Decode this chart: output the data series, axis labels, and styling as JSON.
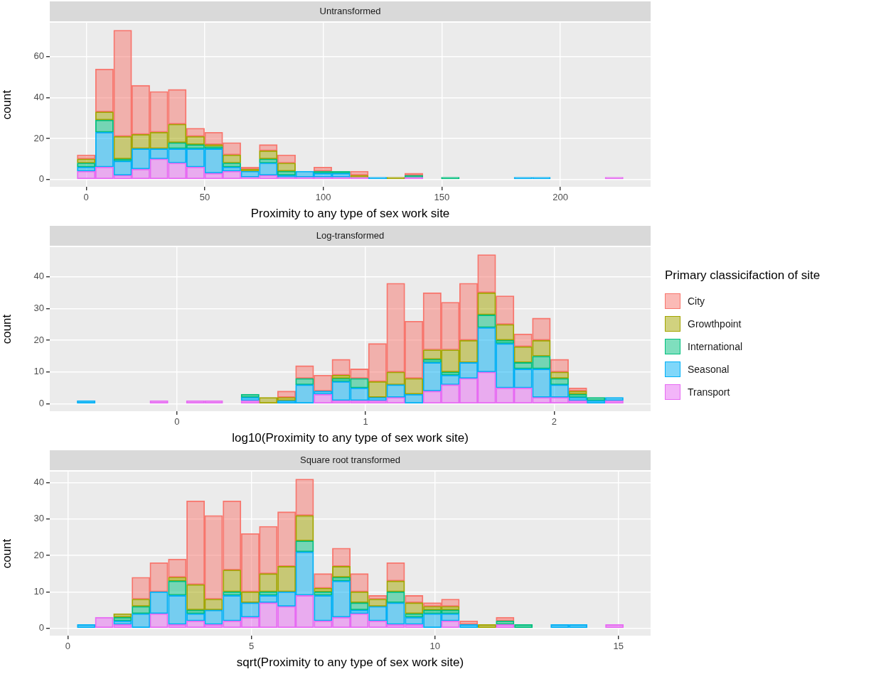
{
  "chart_data": [
    {
      "type": "bar",
      "title": "Untransformed",
      "xlabel": "Proximity to any type of sex work site",
      "ylabel": "count",
      "stacked": true,
      "grid": true,
      "legend": false,
      "x": [
        0,
        7.7,
        15.4,
        23,
        30.7,
        38.4,
        46.1,
        53.8,
        61.4,
        69.1,
        76.8,
        84.5,
        92.2,
        99.8,
        107.5,
        115.2,
        122.9,
        130.6,
        138.2,
        145.9,
        153.6,
        161.3,
        169,
        176.6,
        184.3,
        192,
        199.7,
        207.4,
        215,
        222.7
      ],
      "xlim": [
        -15.36,
        238.08
      ],
      "xticks": [
        0,
        50,
        100,
        150,
        200
      ],
      "ylim": [
        -3.65,
        76.65
      ],
      "yticks": [
        0,
        20,
        40,
        60
      ],
      "series": [
        {
          "color": "#e76bf3",
          "values": [
            4,
            6,
            2,
            5,
            10,
            8,
            6,
            3,
            4,
            1,
            2,
            1,
            1,
            1,
            1,
            1,
            null,
            null,
            1,
            null,
            null,
            null,
            null,
            null,
            null,
            null,
            null,
            null,
            null,
            1
          ]
        },
        {
          "color": "#00b0f6",
          "values": [
            2,
            17,
            7,
            10,
            5,
            7,
            9,
            12,
            2,
            3,
            6,
            1,
            3,
            2,
            2,
            null,
            1,
            null,
            null,
            null,
            null,
            null,
            null,
            null,
            1,
            1,
            null,
            null,
            null,
            null
          ]
        },
        {
          "color": "#00bf7d",
          "values": [
            2,
            6,
            1,
            null,
            null,
            3,
            2,
            1,
            2,
            null,
            2,
            2,
            null,
            1,
            1,
            null,
            null,
            null,
            1,
            null,
            1,
            null,
            null,
            null,
            null,
            null,
            null,
            null,
            null,
            null
          ]
        },
        {
          "color": "#a3a500",
          "values": [
            2,
            4,
            11,
            7,
            8,
            9,
            4,
            1,
            4,
            1,
            4,
            4,
            null,
            null,
            null,
            1,
            null,
            1,
            null,
            null,
            null,
            null,
            null,
            null,
            null,
            null,
            null,
            null,
            null,
            null
          ]
        },
        {
          "color": "#f8766d",
          "values": [
            2,
            21,
            52,
            24,
            20,
            17,
            4,
            6,
            6,
            1,
            3,
            4,
            null,
            2,
            null,
            2,
            null,
            null,
            1,
            null,
            null,
            null,
            null,
            null,
            null,
            null,
            null,
            null,
            null,
            null
          ]
        }
      ]
    },
    {
      "type": "bar",
      "title": "Log-transformed",
      "xlabel": "log10(Proximity to any type of sex work site)",
      "ylabel": "count",
      "stacked": true,
      "grid": true,
      "legend": "right",
      "legend_title": "Primary classicifaction of site",
      "x": [
        -0.481,
        -0.384,
        -0.288,
        -0.191,
        -0.095,
        0.002,
        0.098,
        0.195,
        0.291,
        0.388,
        0.484,
        0.581,
        0.677,
        0.774,
        0.87,
        0.967,
        1.063,
        1.16,
        1.256,
        1.353,
        1.449,
        1.546,
        1.642,
        1.739,
        1.835,
        1.932,
        2.028,
        2.125,
        2.221,
        2.318
      ],
      "xlim": [
        -0.674,
        2.511
      ],
      "xticks": [
        0,
        1,
        2
      ],
      "ylim": [
        -2.35,
        49.35
      ],
      "yticks": [
        0,
        10,
        20,
        30,
        40
      ],
      "series": [
        {
          "name": "Transport",
          "color": "#e76bf3",
          "values": [
            0,
            0,
            0,
            0,
            1,
            0,
            1,
            1,
            0,
            1,
            0,
            0,
            0,
            3,
            1,
            1,
            1,
            2,
            0,
            4,
            6,
            8,
            10,
            5,
            5,
            2,
            2,
            1,
            0,
            1
          ]
        },
        {
          "name": "Seasonal",
          "color": "#00b0f6",
          "values": [
            1,
            0,
            0,
            0,
            0,
            0,
            0,
            0,
            0,
            1,
            0,
            1,
            6,
            1,
            6,
            4,
            1,
            4,
            3,
            9,
            3,
            5,
            14,
            14,
            6,
            9,
            4,
            1,
            1,
            1
          ]
        },
        {
          "name": "International",
          "color": "#00bf7d",
          "values": [
            0,
            0,
            0,
            0,
            0,
            0,
            0,
            0,
            0,
            1,
            0,
            0,
            2,
            0,
            1,
            3,
            0,
            0,
            0,
            1,
            1,
            0,
            4,
            1,
            2,
            4,
            2,
            1,
            1,
            0
          ]
        },
        {
          "name": "Growthpoint",
          "color": "#a3a500",
          "values": [
            0,
            0,
            0,
            0,
            0,
            0,
            0,
            0,
            0,
            0,
            2,
            1,
            0,
            0,
            1,
            0,
            5,
            4,
            5,
            3,
            7,
            7,
            7,
            5,
            5,
            5,
            2,
            1,
            0,
            0
          ]
        },
        {
          "name": "City",
          "color": "#f8766d",
          "values": [
            0,
            0,
            0,
            0,
            0,
            0,
            0,
            0,
            0,
            0,
            0,
            2,
            4,
            5,
            5,
            3,
            12,
            28,
            18,
            18,
            15,
            18,
            12,
            9,
            4,
            7,
            4,
            1,
            0,
            0
          ]
        }
      ]
    },
    {
      "type": "bar",
      "title": "Square root transformed",
      "xlabel": "sqrt(Proximity to any type of sex work site)",
      "ylabel": "count",
      "stacked": true,
      "grid": true,
      "legend": false,
      "x": [
        0.5,
        0.99,
        1.49,
        1.99,
        2.48,
        2.98,
        3.48,
        3.97,
        4.47,
        4.97,
        5.46,
        5.96,
        6.45,
        6.95,
        7.45,
        7.94,
        8.44,
        8.93,
        9.43,
        9.93,
        10.42,
        10.92,
        11.42,
        11.91,
        12.41,
        12.9,
        13.4,
        13.9,
        14.39,
        14.89
      ],
      "xlim": [
        -0.493,
        15.875
      ],
      "xticks": [
        0,
        5,
        10,
        15
      ],
      "ylim": [
        -2.05,
        43.05
      ],
      "yticks": [
        0,
        10,
        20,
        30,
        40
      ],
      "series": [
        {
          "color": "#e76bf3",
          "values": [
            0,
            3,
            1,
            0,
            4,
            1,
            2,
            1,
            2,
            3,
            7,
            6,
            9,
            2,
            3,
            4,
            2,
            1,
            1,
            0,
            2,
            0,
            0,
            1,
            0,
            0,
            0,
            0,
            0,
            1
          ]
        },
        {
          "color": "#00b0f6",
          "values": [
            1,
            0,
            1,
            4,
            6,
            8,
            2,
            4,
            7,
            4,
            2,
            4,
            12,
            7,
            10,
            1,
            4,
            6,
            2,
            4,
            2,
            1,
            0,
            0,
            0,
            0,
            1,
            1,
            0,
            0
          ]
        },
        {
          "color": "#00bf7d",
          "values": [
            0,
            0,
            1,
            2,
            0,
            4,
            1,
            0,
            1,
            0,
            1,
            0,
            3,
            1,
            1,
            2,
            0,
            3,
            1,
            1,
            1,
            0,
            0,
            1,
            1,
            0,
            0,
            0,
            0,
            0
          ]
        },
        {
          "color": "#a3a500",
          "values": [
            0,
            0,
            1,
            2,
            0,
            1,
            7,
            3,
            6,
            3,
            5,
            7,
            7,
            1,
            3,
            3,
            2,
            3,
            3,
            1,
            1,
            0,
            1,
            0,
            0,
            0,
            0,
            0,
            0,
            0
          ]
        },
        {
          "color": "#f8766d",
          "values": [
            0,
            0,
            0,
            6,
            8,
            5,
            23,
            23,
            19,
            16,
            13,
            15,
            10,
            4,
            5,
            5,
            1,
            5,
            2,
            1,
            2,
            1,
            0,
            1,
            0,
            0,
            0,
            0,
            0,
            0
          ]
        }
      ]
    }
  ]
}
